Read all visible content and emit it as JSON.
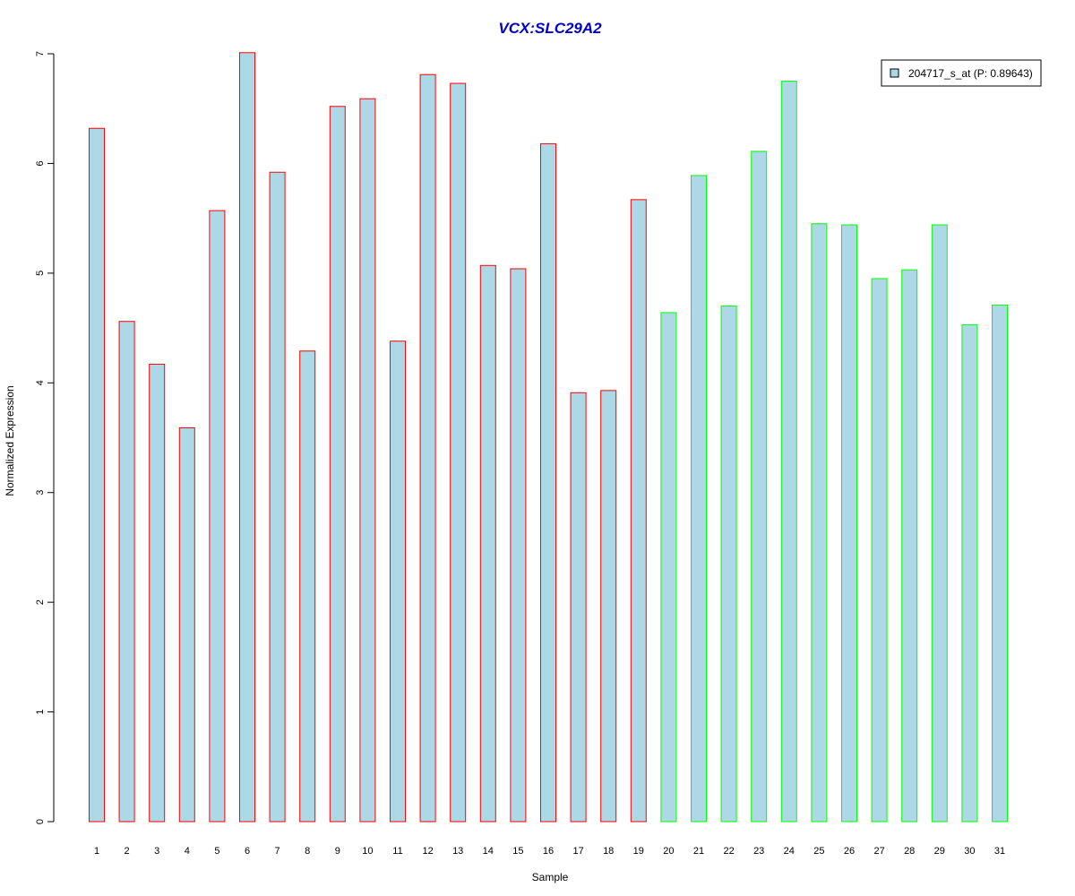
{
  "chart_data": {
    "type": "bar",
    "title": "VCX:SLC29A2",
    "xlabel": "Sample",
    "ylabel": "Normalized Expression",
    "ylim": [
      0,
      7
    ],
    "yticks": [
      0,
      1,
      2,
      3,
      4,
      5,
      6,
      7
    ],
    "categories": [
      "1",
      "2",
      "3",
      "4",
      "5",
      "6",
      "7",
      "8",
      "9",
      "10",
      "11",
      "12",
      "13",
      "14",
      "15",
      "16",
      "17",
      "18",
      "19",
      "20",
      "21",
      "22",
      "23",
      "24",
      "25",
      "26",
      "27",
      "28",
      "29",
      "30",
      "31"
    ],
    "values": [
      6.32,
      4.56,
      4.17,
      3.59,
      5.57,
      7.01,
      5.92,
      4.29,
      6.52,
      6.59,
      4.38,
      6.81,
      6.73,
      5.07,
      5.04,
      6.18,
      3.91,
      3.93,
      5.67,
      4.64,
      5.89,
      4.7,
      6.11,
      6.75,
      5.45,
      5.44,
      4.95,
      5.03,
      5.44,
      4.53,
      4.71
    ],
    "groups": [
      "red",
      "red",
      "red",
      "red",
      "red",
      "red",
      "red",
      "red",
      "red",
      "red",
      "red",
      "red",
      "red",
      "red",
      "red",
      "red",
      "red",
      "red",
      "red",
      "green",
      "green",
      "green",
      "green",
      "green",
      "green",
      "green",
      "green",
      "green",
      "green",
      "green",
      "green"
    ],
    "colors": {
      "fill": "#add8e6",
      "red": "#ff0000",
      "green": "#00ff00",
      "title": "#0000cd",
      "axis": "#000000"
    },
    "grid": false,
    "legend": {
      "placement": "top-right",
      "label": "204717_s_at (P: 0.89643)"
    }
  }
}
